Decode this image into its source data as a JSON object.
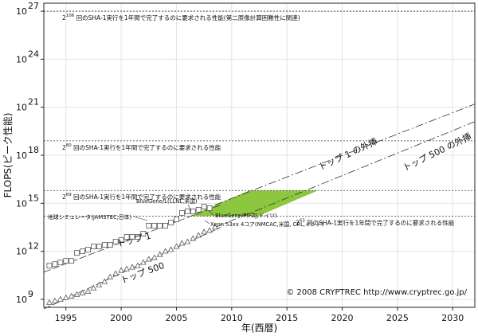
{
  "chart_data": {
    "type": "scatter",
    "xlabel": "年(西暦)",
    "ylabel": "FLOPS(ピーク性能)",
    "xlim": [
      1993,
      2032
    ],
    "ylog10lim": [
      8.5,
      27.5
    ],
    "y_scale": "log",
    "x_ticks": [
      1995,
      2000,
      2005,
      2010,
      2015,
      2020,
      2025,
      2030
    ],
    "y_ticks": [
      {
        "base": "10",
        "exp": "9",
        "v": 9
      },
      {
        "base": "10",
        "exp": "12",
        "v": 12
      },
      {
        "base": "10",
        "exp": "15",
        "v": 15
      },
      {
        "base": "10",
        "exp": "18",
        "v": 18
      },
      {
        "base": "10",
        "exp": "21",
        "v": 21
      },
      {
        "base": "10",
        "exp": "24",
        "v": 24
      },
      {
        "base": "10",
        "exp": "27",
        "v": 27
      }
    ],
    "grid": true,
    "series": [
      {
        "name": "トップ 1",
        "marker": "square",
        "x": [
          1993.5,
          1994,
          1994.5,
          1995,
          1995.5,
          1996,
          1996.5,
          1997,
          1997.5,
          1998,
          1998.5,
          1999,
          1999.5,
          2000,
          2000.5,
          2001,
          2001.5,
          2002,
          2002.5,
          2003,
          2003.5,
          2004,
          2004.5,
          2005,
          2005.5,
          2006,
          2006.5,
          2007,
          2007.5,
          2008
        ],
        "log10_flops": [
          11.1,
          11.2,
          11.3,
          11.4,
          11.4,
          11.9,
          12.0,
          12.1,
          12.3,
          12.3,
          12.4,
          12.4,
          12.6,
          12.7,
          12.9,
          12.9,
          12.9,
          13.1,
          13.6,
          13.6,
          13.6,
          13.6,
          13.8,
          14.0,
          14.4,
          14.5,
          14.5,
          14.6,
          14.8,
          14.7
        ]
      },
      {
        "name": "トップ 500",
        "marker": "triangle",
        "x": [
          1993.5,
          1994,
          1994.5,
          1995,
          1995.5,
          1996,
          1996.5,
          1997,
          1997.5,
          1998,
          1998.5,
          1999,
          1999.5,
          2000,
          2000.5,
          2001,
          2001.5,
          2002,
          2002.5,
          2003,
          2003.5,
          2004,
          2004.5,
          2005,
          2005.5,
          2006,
          2006.5,
          2007,
          2007.5,
          2008,
          2008.5
        ],
        "log10_flops": [
          8.8,
          8.9,
          9.0,
          9.1,
          9.2,
          9.3,
          9.4,
          9.5,
          9.7,
          9.9,
          10.1,
          10.4,
          10.6,
          10.8,
          10.9,
          11.0,
          11.1,
          11.3,
          11.5,
          11.6,
          11.8,
          12.0,
          12.1,
          12.3,
          12.5,
          12.6,
          12.8,
          13.0,
          13.2,
          13.3,
          13.5
        ]
      }
    ],
    "trend_lines": [
      {
        "name": "トップ 1",
        "x": [
          1993,
          2009
        ],
        "log10_flops": [
          10.7,
          14.9
        ],
        "dash": "long"
      },
      {
        "name": "トップ 1 の外挿",
        "x": [
          2008.5,
          2032
        ],
        "log10_flops": [
          14.9,
          21.2
        ],
        "dash": "long-dot"
      },
      {
        "name": "トップ 500",
        "x": [
          1993,
          2009
        ],
        "log10_flops": [
          8.4,
          13.5
        ],
        "dash": "long"
      },
      {
        "name": "トップ 500 の外挿",
        "x": [
          2008.5,
          2032
        ],
        "log10_flops": [
          13.5,
          20.1
        ],
        "dash": "long-dot"
      }
    ],
    "thresholds": [
      {
        "v": 27.0,
        "label_exp": "106",
        "text": " 回のSHA-1実行を1年間で完了するのに要求される性能(第二原像計算困難性に関連)"
      },
      {
        "v": 18.9,
        "label_exp": "80",
        "text": " 回のSHA-1実行を1年間で完了するのに要求される性能"
      },
      {
        "v": 15.8,
        "label_exp": "69",
        "text": " 回のSHA-1実行を1年間で完了するのに要求される性能"
      },
      {
        "v": 14.2,
        "label_exp": "63",
        "text": " 回のSHA-1実行を1年間で完了するのに要求される性能"
      }
    ],
    "green_region": {
      "x": [
        2006.2,
        2012.4,
        2017.8,
        2011.6
      ],
      "log10_flops": [
        14.2,
        14.2,
        15.8,
        15.8
      ],
      "color": "#8dc63f"
    },
    "annotations": {
      "bluegene_l": "BlueGene/L(LLNL,米国)",
      "earth_sim": "地球シミュレータ(JAMSTEC,日本)",
      "bluegene_p": "BlueGene/P(FZJ,ドイツ)",
      "xeon": "Xeon 53xx 4コア(NMCAC,米国, CRL,インド)",
      "top1_label": "トップ 1",
      "top500_label": "トップ 500",
      "top1_ext_label": "トップ 1 の外挿",
      "top500_ext_label": "トップ 500 の外挿",
      "copyright": "© 2008 CRYPTREC http://www.cryptrec.go.jp/"
    }
  }
}
